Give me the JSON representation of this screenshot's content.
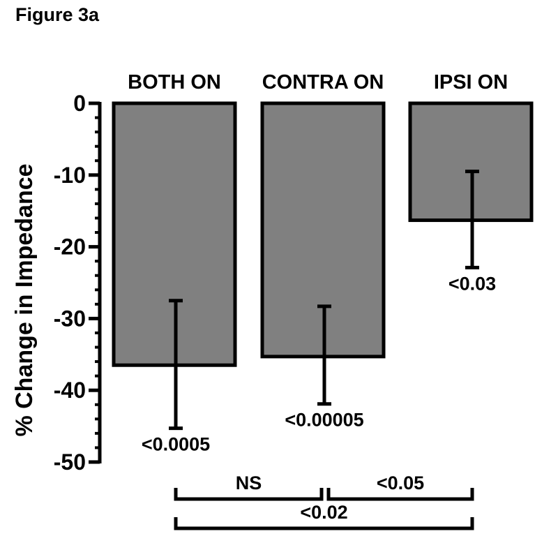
{
  "figure_label": "Figure 3a",
  "chart_data": {
    "type": "bar",
    "categories": [
      "BOTH ON",
      "CONTRA ON",
      "IPSI ON"
    ],
    "values": [
      -36.5,
      -35.3,
      -16.3
    ],
    "error_low": [
      -45.3,
      -41.9,
      -22.9
    ],
    "error_high": [
      -27.5,
      -28.3,
      -9.5
    ],
    "p_values": [
      "<0.0005",
      "<0.00005",
      "<0.03"
    ],
    "ylabel": "% Change in Impedance",
    "xlabel": "",
    "ylim": [
      -50,
      0
    ],
    "yticks": [
      0,
      -10,
      -20,
      -30,
      -40,
      -50
    ],
    "bar_color": "#808080",
    "comparisons": [
      {
        "from": 0,
        "to": 1,
        "label": "NS"
      },
      {
        "from": 1,
        "to": 2,
        "label": "<0.05"
      },
      {
        "from": 0,
        "to": 2,
        "label": "<0.02"
      }
    ]
  }
}
